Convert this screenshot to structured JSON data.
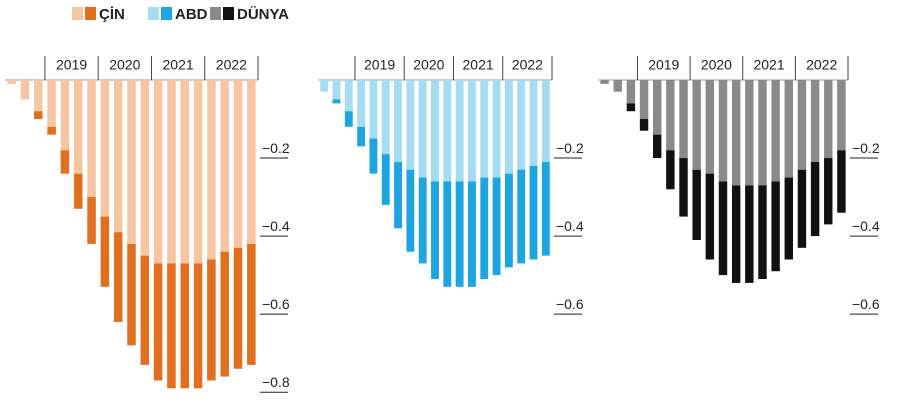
{
  "chart_data": [
    {
      "type": "bar",
      "stacked": true,
      "legend_label": "ÇİN",
      "categories": [
        null,
        null,
        null,
        null,
        null,
        null,
        null,
        null,
        null,
        null,
        null,
        null,
        null,
        null,
        null,
        null,
        null,
        null,
        null
      ],
      "period_labels": [
        "2019",
        "2020",
        "2021",
        "2022"
      ],
      "series": [
        {
          "color": "#f6c6a2",
          "values": [
            -0.01,
            -0.05,
            -0.08,
            -0.12,
            -0.18,
            -0.24,
            -0.3,
            -0.35,
            -0.39,
            -0.42,
            -0.45,
            -0.47,
            -0.47,
            -0.47,
            -0.47,
            -0.46,
            -0.44,
            -0.43,
            -0.42
          ]
        },
        {
          "color": "#e0701f",
          "values": [
            0,
            0,
            -0.02,
            -0.02,
            -0.06,
            -0.09,
            -0.12,
            -0.18,
            -0.23,
            -0.26,
            -0.28,
            -0.3,
            -0.32,
            -0.32,
            -0.32,
            -0.31,
            -0.32,
            -0.31,
            -0.31
          ]
        }
      ],
      "ylim": [
        -0.82,
        0
      ],
      "yticks": [
        {
          "value": -0.2,
          "label": "−0.2"
        },
        {
          "value": -0.4,
          "label": "−0.4"
        },
        {
          "value": -0.6,
          "label": "−0.6"
        },
        {
          "value": -0.8,
          "label": "−0.8"
        }
      ]
    },
    {
      "type": "bar",
      "stacked": true,
      "legend_label": "ABD",
      "categories": [
        null,
        null,
        null,
        null,
        null,
        null,
        null,
        null,
        null,
        null,
        null,
        null,
        null,
        null,
        null,
        null,
        null,
        null,
        null
      ],
      "period_labels": [
        "2019",
        "2020",
        "2021",
        "2022"
      ],
      "series": [
        {
          "color": "#a6dcf2",
          "values": [
            -0.03,
            -0.05,
            -0.08,
            -0.12,
            -0.15,
            -0.19,
            -0.21,
            -0.23,
            -0.25,
            -0.26,
            -0.26,
            -0.26,
            -0.26,
            -0.25,
            -0.25,
            -0.24,
            -0.23,
            -0.22,
            -0.21
          ]
        },
        {
          "color": "#1ea5e0",
          "values": [
            0,
            -0.01,
            -0.04,
            -0.05,
            -0.09,
            -0.13,
            -0.17,
            -0.21,
            -0.22,
            -0.25,
            -0.27,
            -0.27,
            -0.27,
            -0.26,
            -0.25,
            -0.24,
            -0.24,
            -0.24,
            -0.24
          ]
        }
      ],
      "ylim": [
        -0.82,
        0
      ],
      "yticks": [
        {
          "value": -0.2,
          "label": "−0.2"
        },
        {
          "value": -0.4,
          "label": "−0.4"
        },
        {
          "value": -0.6,
          "label": "−0.6"
        }
      ]
    },
    {
      "type": "bar",
      "stacked": true,
      "legend_label": "DÜNYA",
      "categories": [
        null,
        null,
        null,
        null,
        null,
        null,
        null,
        null,
        null,
        null,
        null,
        null,
        null,
        null,
        null,
        null,
        null,
        null,
        null
      ],
      "period_labels": [
        "2019",
        "2020",
        "2021",
        "2022"
      ],
      "series": [
        {
          "color": "#8a8a8a",
          "values": [
            -0.01,
            -0.03,
            -0.06,
            -0.1,
            -0.14,
            -0.18,
            -0.2,
            -0.23,
            -0.24,
            -0.26,
            -0.27,
            -0.27,
            -0.27,
            -0.26,
            -0.25,
            -0.23,
            -0.21,
            -0.2,
            -0.18
          ]
        },
        {
          "color": "#111111",
          "values": [
            0,
            0,
            -0.02,
            -0.03,
            -0.06,
            -0.1,
            -0.15,
            -0.18,
            -0.22,
            -0.24,
            -0.25,
            -0.25,
            -0.24,
            -0.23,
            -0.21,
            -0.2,
            -0.19,
            -0.17,
            -0.16
          ]
        }
      ],
      "ylim": [
        -0.82,
        0
      ],
      "yticks": [
        {
          "value": -0.2,
          "label": "−0.2"
        },
        {
          "value": -0.4,
          "label": "−0.4"
        },
        {
          "value": -0.6,
          "label": "−0.6"
        }
      ]
    }
  ]
}
